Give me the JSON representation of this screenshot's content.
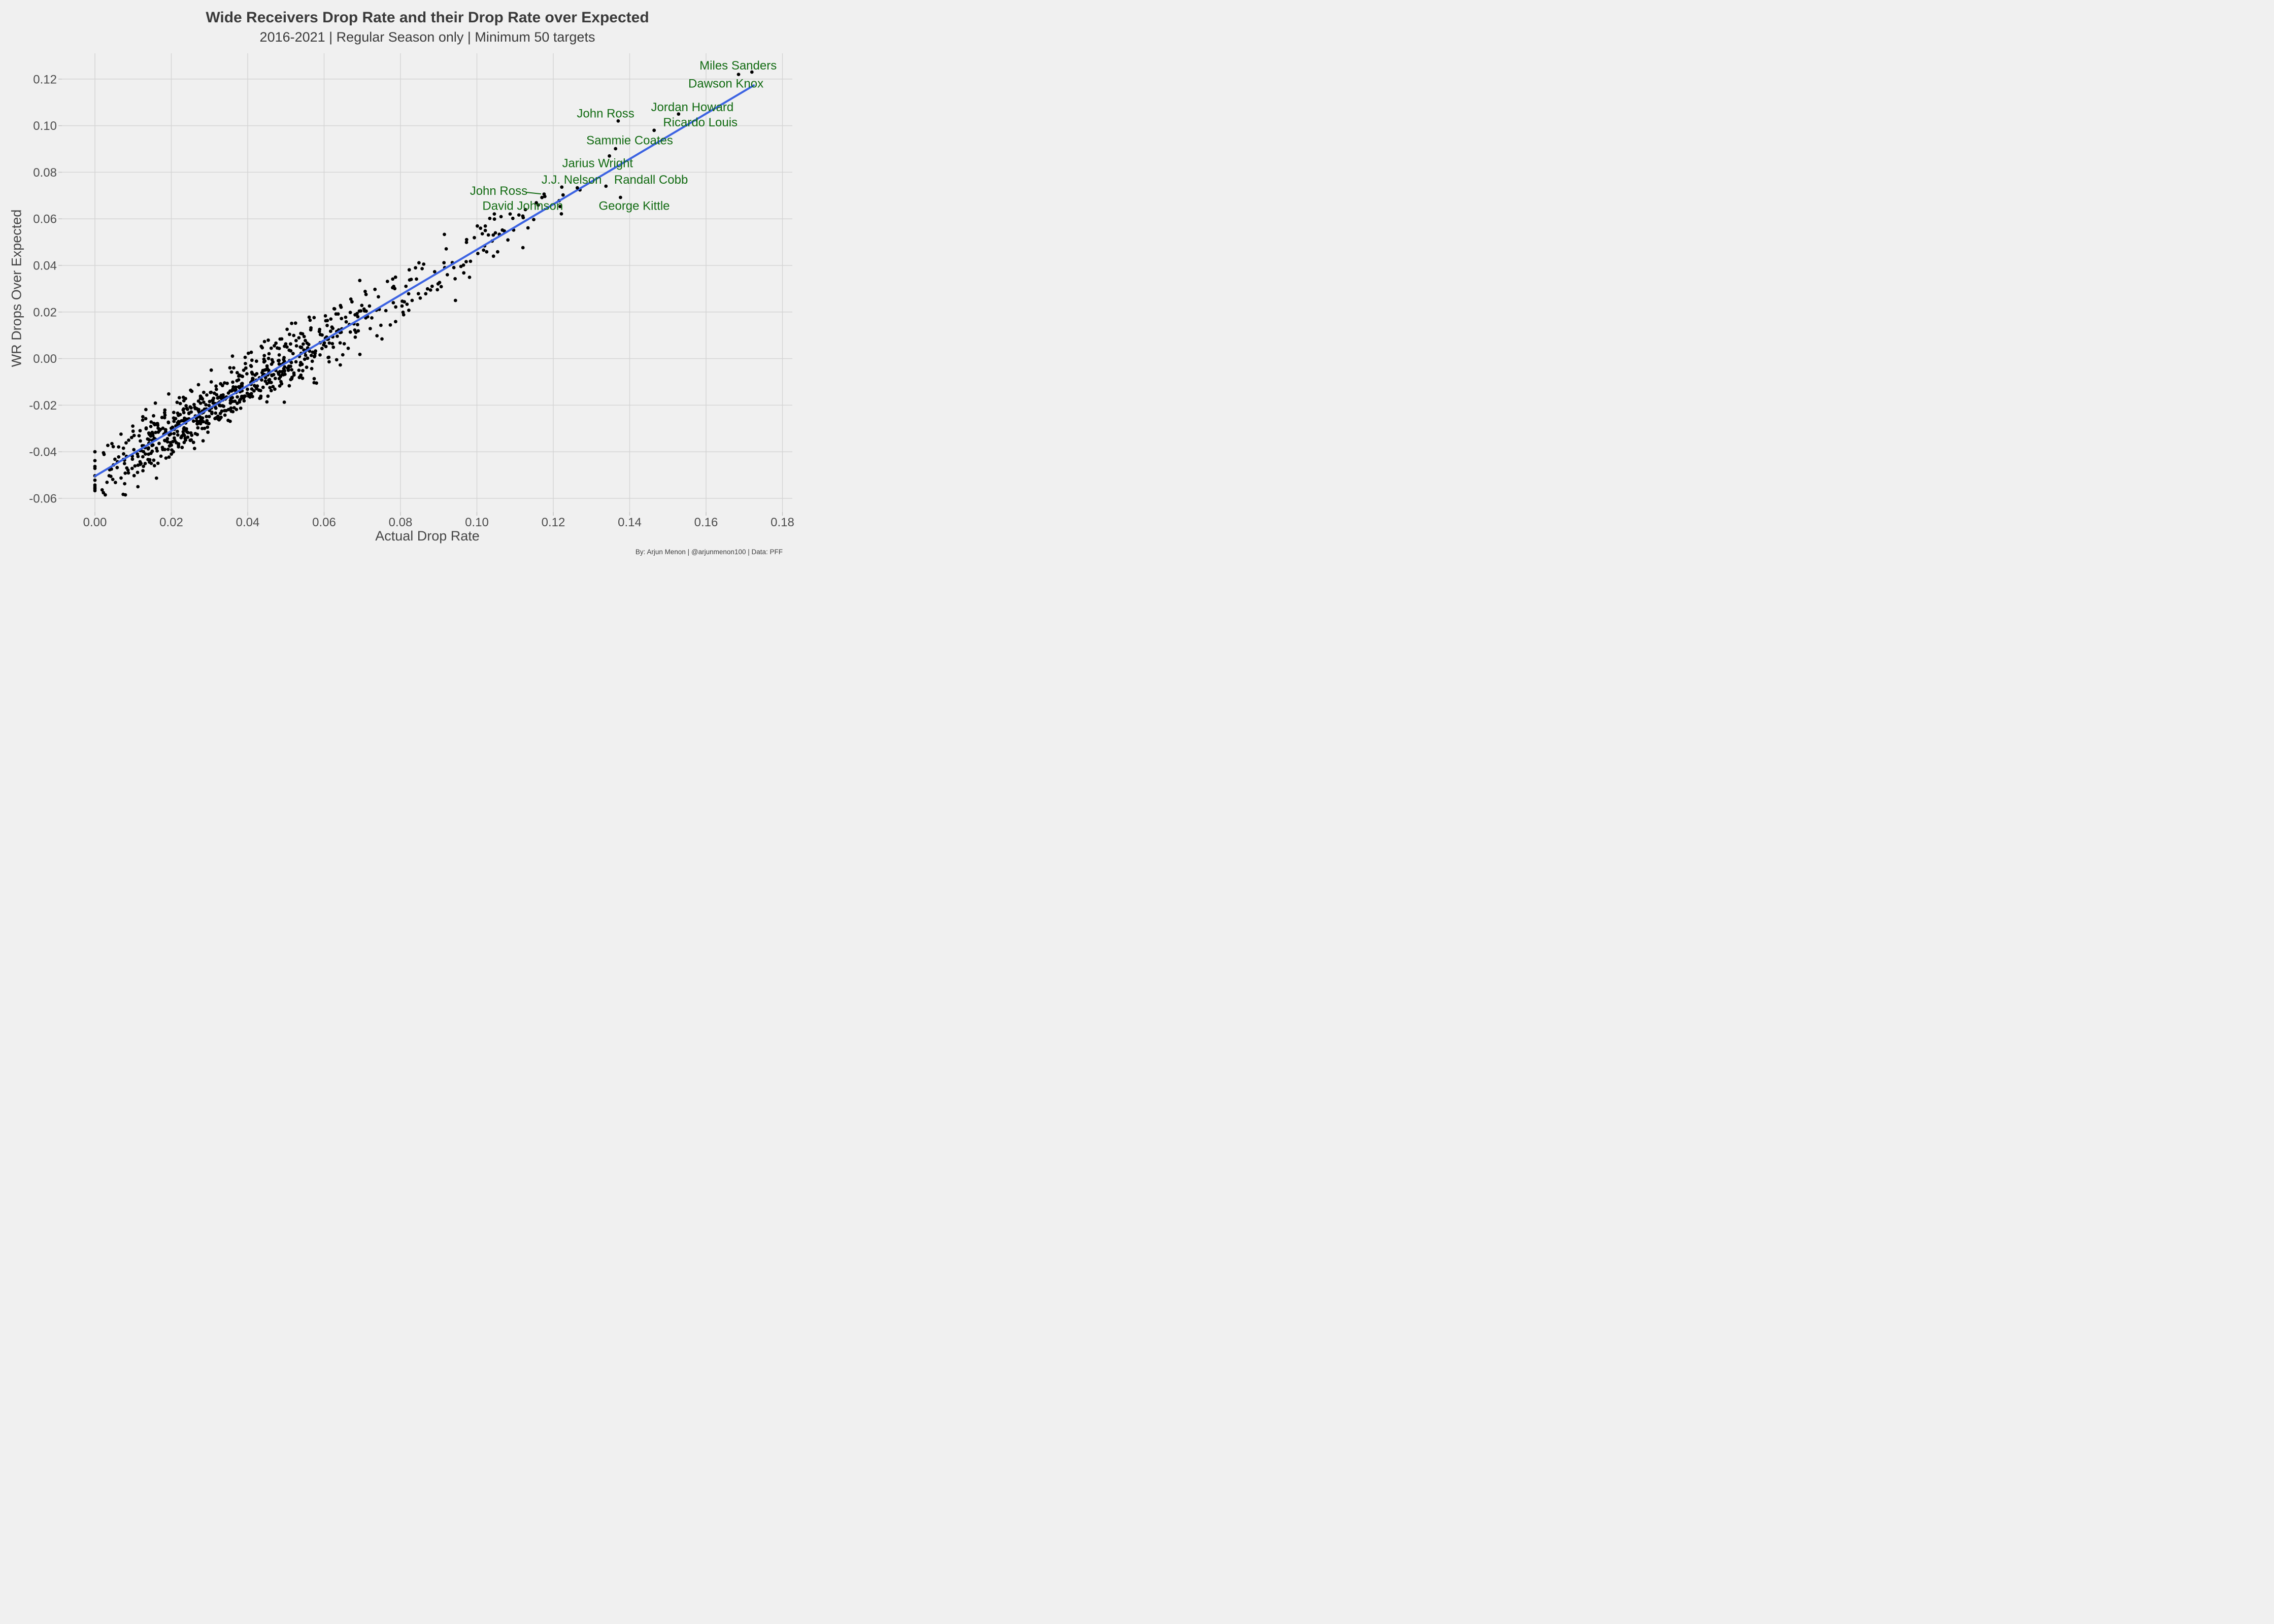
{
  "header": {
    "title": "Wide Receivers Drop Rate and their Drop Rate over Expected",
    "subtitle": "2016-2021 | Regular Season only | Minimum 50 targets"
  },
  "caption": "By: Arjun Menon | @arjunmenon100 | Data: PFF",
  "colors": {
    "background": "#F0F0F0",
    "gridline": "#D5D5D5",
    "tick_mark": "#C4C4C4",
    "axis_text": "#4D4D4D",
    "title_text": "#3A3A3A",
    "point": "#000000",
    "regression_blue": "#3C63E2",
    "label_green": "#126B12"
  },
  "chart_data": {
    "type": "scatter",
    "title": "Wide Receivers Drop Rate and their Drop Rate over Expected",
    "subtitle": "2016-2021 | Regular Season only | Minimum 50 targets",
    "caption": "By: Arjun Menon | @arjunmenon100 | Data: PFF",
    "xlabel": "Actual Drop Rate",
    "ylabel": "WR Drops Over Expected",
    "xlim": [
      -0.0087,
      0.1826
    ],
    "ylim": [
      -0.0658,
      0.1311
    ],
    "grid": true,
    "legend": false,
    "x_ticks": {
      "values": [
        0.0,
        0.02,
        0.04,
        0.06,
        0.08,
        0.1,
        0.12,
        0.14,
        0.16,
        0.18
      ],
      "labels": [
        "0.00",
        "0.02",
        "0.04",
        "0.06",
        "0.08",
        "0.10",
        "0.12",
        "0.14",
        "0.16",
        "0.18"
      ]
    },
    "y_ticks": {
      "values": [
        0.12,
        0.1,
        0.08,
        0.06,
        0.04,
        0.02,
        0.0,
        -0.02,
        -0.04,
        -0.06
      ],
      "labels": [
        "0.12",
        "0.10",
        "0.08",
        "0.06",
        "0.04",
        "0.02",
        "0.00",
        "-0.02",
        "-0.04",
        "-0.06"
      ]
    },
    "regression_line": {
      "x1": 0.0,
      "y1": -0.0505,
      "x2": 0.1725,
      "y2": 0.1173
    },
    "labeled_points": [
      {
        "name": "Miles Sanders",
        "x": 0.1685,
        "y": 0.122,
        "label_x": 0.1684,
        "label_y": 0.1257
      },
      {
        "name": "Dawson Knox",
        "x": 0.172,
        "y": 0.123,
        "label_x": 0.1652,
        "label_y": 0.118
      },
      {
        "name": "John Ross",
        "x": 0.137,
        "y": 0.102,
        "label_x": 0.1337,
        "label_y": 0.1051
      },
      {
        "name": "Jordan Howard",
        "x": 0.1528,
        "y": 0.105,
        "label_x": 0.1564,
        "label_y": 0.1079
      },
      {
        "name": "Ricardo Louis",
        "x": 0.1464,
        "y": 0.098,
        "label_x": 0.1585,
        "label_y": 0.1013
      },
      {
        "name": "Sammie Coates",
        "x": 0.1363,
        "y": 0.0901,
        "label_x": 0.14,
        "label_y": 0.0936
      },
      {
        "name": "Jarius Wright",
        "x": 0.1347,
        "y": 0.087,
        "label_x": 0.1316,
        "label_y": 0.0838
      },
      {
        "name": "J.J. Nelson",
        "x": 0.1263,
        "y": 0.0733,
        "label_x": 0.1248,
        "label_y": 0.0767
      },
      {
        "name": "Randall Cobb",
        "x": 0.1338,
        "y": 0.074,
        "label_x": 0.1456,
        "label_y": 0.0767
      },
      {
        "name": "John Ross",
        "x": 0.1176,
        "y": 0.0706,
        "label_x": 0.1057,
        "label_y": 0.0719,
        "connector": {
          "x1": 0.1128,
          "y1": 0.0714,
          "x2": 0.1168,
          "y2": 0.0707
        }
      },
      {
        "name": "David Johnson",
        "x": 0.1218,
        "y": 0.0653,
        "label_x": 0.112,
        "label_y": 0.0655
      },
      {
        "name": "George Kittle",
        "x": 0.1376,
        "y": 0.0692,
        "label_x": 0.1412,
        "label_y": 0.0655
      }
    ],
    "extra_points": [
      {
        "x": 0.1178,
        "y": 0.0696
      },
      {
        "x": 0.1046,
        "y": 0.0599
      },
      {
        "x": 0.1087,
        "y": 0.0621
      },
      {
        "x": 0.1022,
        "y": 0.0569
      },
      {
        "x": 0.1022,
        "y": 0.055
      }
    ],
    "zero_stack_points": {
      "x": 0.0,
      "y": [
        -0.04,
        -0.0438,
        -0.0463,
        -0.0471,
        -0.0503,
        -0.0522,
        -0.0543,
        -0.0551,
        -0.0559,
        -0.0567
      ]
    },
    "cloud": {
      "n": 780,
      "seed": 7,
      "slope": 0.974,
      "intercept": -0.0505,
      "noise_sd": 0.0066,
      "noise_clamp": 0.0165,
      "x_gamma_shape": 2,
      "x_gamma_scale": 0.022,
      "x_shift": 0.0015,
      "x_max": 0.127,
      "y_min": -0.0585
    }
  }
}
